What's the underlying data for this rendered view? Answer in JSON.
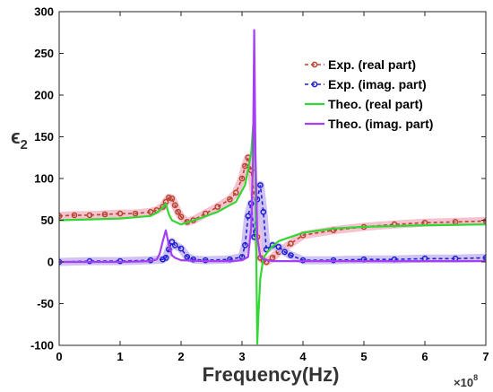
{
  "chart_data": {
    "type": "line",
    "title": "",
    "xlabel": "Frequency(Hz)",
    "ylabel_symbol": "ϵ",
    "ylabel_subscript": "2",
    "x_multiplier_base": "×10",
    "x_multiplier_exp": "8",
    "xlim": [
      0,
      7
    ],
    "ylim": [
      -100,
      300
    ],
    "x_ticks": [
      0,
      1,
      2,
      3,
      4,
      5,
      6,
      7
    ],
    "y_ticks": [
      -100,
      -50,
      0,
      50,
      100,
      150,
      200,
      250,
      300
    ],
    "grid": false,
    "legend_position": "top-right",
    "series": [
      {
        "name": "Exp. (real part)",
        "color": "#b8442c",
        "halo": "#f3b7c8",
        "style": "dashed-markers",
        "x": [
          0,
          0.25,
          0.5,
          0.75,
          1.0,
          1.25,
          1.5,
          1.6,
          1.7,
          1.75,
          1.8,
          1.85,
          1.9,
          1.95,
          2.0,
          2.1,
          2.2,
          2.4,
          2.6,
          2.8,
          2.9,
          3.0,
          3.05,
          3.1,
          3.15,
          3.2,
          3.25,
          3.3,
          3.35,
          3.4,
          3.5,
          3.6,
          3.8,
          4.0,
          4.5,
          5.0,
          5.5,
          6.0,
          6.5,
          7.0
        ],
        "y": [
          55,
          56,
          56,
          57,
          58,
          58,
          60,
          62,
          66,
          72,
          77,
          76,
          68,
          60,
          54,
          48,
          50,
          58,
          66,
          75,
          83,
          100,
          115,
          125,
          110,
          80,
          30,
          5,
          2,
          0,
          5,
          12,
          22,
          32,
          38,
          42,
          45,
          47,
          48,
          49
        ]
      },
      {
        "name": "Exp. (imag. part)",
        "color": "#1f1fd6",
        "halo": "#c8b9f0",
        "style": "dashed-markers",
        "x": [
          0,
          0.5,
          1.0,
          1.5,
          1.7,
          1.75,
          1.8,
          1.85,
          1.9,
          2.0,
          2.1,
          2.2,
          2.4,
          2.8,
          3.0,
          3.05,
          3.1,
          3.15,
          3.2,
          3.25,
          3.3,
          3.35,
          3.4,
          3.5,
          3.6,
          3.7,
          3.8,
          4.0,
          4.5,
          5.0,
          5.5,
          6.0,
          6.5,
          7.0
        ],
        "y": [
          0,
          1,
          1,
          2,
          3,
          5,
          15,
          24,
          20,
          16,
          6,
          3,
          2,
          3,
          6,
          20,
          55,
          70,
          30,
          75,
          92,
          60,
          15,
          20,
          18,
          12,
          8,
          2,
          2,
          3,
          3,
          4,
          4,
          5
        ]
      },
      {
        "name": "Theo. (real part)",
        "color": "#33d633",
        "style": "solid",
        "x": [
          0,
          0.5,
          1.0,
          1.5,
          1.6,
          1.7,
          1.75,
          1.8,
          1.85,
          2.0,
          2.3,
          2.6,
          2.9,
          3.05,
          3.15,
          3.2,
          3.22,
          3.25,
          3.27,
          3.3,
          3.35,
          3.45,
          3.6,
          4.0,
          4.5,
          5.0,
          6.0,
          7.0
        ],
        "y": [
          50,
          51,
          52,
          55,
          59,
          65,
          70,
          57,
          50,
          45,
          52,
          60,
          72,
          92,
          130,
          180,
          100,
          -98,
          -60,
          -20,
          5,
          15,
          25,
          35,
          40,
          42,
          44,
          45
        ]
      },
      {
        "name": "Theo. (imag. part)",
        "color": "#a43ff2",
        "style": "solid",
        "x": [
          0,
          0.5,
          1.0,
          1.5,
          1.6,
          1.65,
          1.7,
          1.75,
          1.8,
          1.85,
          1.9,
          2.0,
          2.4,
          2.8,
          3.0,
          3.1,
          3.15,
          3.18,
          3.2,
          3.22,
          3.25,
          3.3,
          3.35,
          3.5,
          4.0,
          5.0,
          6.0,
          7.0
        ],
        "y": [
          0,
          0,
          0,
          1,
          3,
          10,
          25,
          38,
          20,
          8,
          5,
          2,
          1,
          1,
          2,
          6,
          40,
          120,
          278,
          130,
          30,
          6,
          3,
          1,
          1,
          1,
          1,
          1
        ]
      }
    ]
  }
}
